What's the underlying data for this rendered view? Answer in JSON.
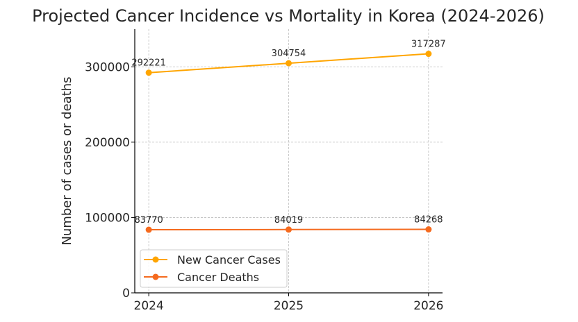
{
  "chart_data": {
    "type": "line",
    "title": "Projected Cancer Incidence vs Mortality in Korea (2024-2026)",
    "xlabel": "",
    "ylabel": "Number of cases or deaths",
    "x": [
      2024,
      2025,
      2026
    ],
    "x_tick_labels": [
      "2024",
      "2025",
      "2026"
    ],
    "y_ticks": [
      0,
      100000,
      200000,
      300000
    ],
    "y_tick_labels": [
      "0",
      "100000",
      "200000",
      "300000"
    ],
    "xlim": [
      2023.9,
      2026.1
    ],
    "ylim": [
      0,
      350000
    ],
    "grid": true,
    "legend_placement": "lower-left",
    "series": [
      {
        "name": "New Cancer Cases",
        "values": [
          292221,
          304754,
          317287
        ],
        "labels": [
          "292221",
          "304754",
          "317287"
        ],
        "color": "#FFA500"
      },
      {
        "name": "Cancer Deaths",
        "values": [
          83770,
          84019,
          84268
        ],
        "labels": [
          "83770",
          "84019",
          "84268"
        ],
        "color": "#F56A1E"
      }
    ]
  }
}
